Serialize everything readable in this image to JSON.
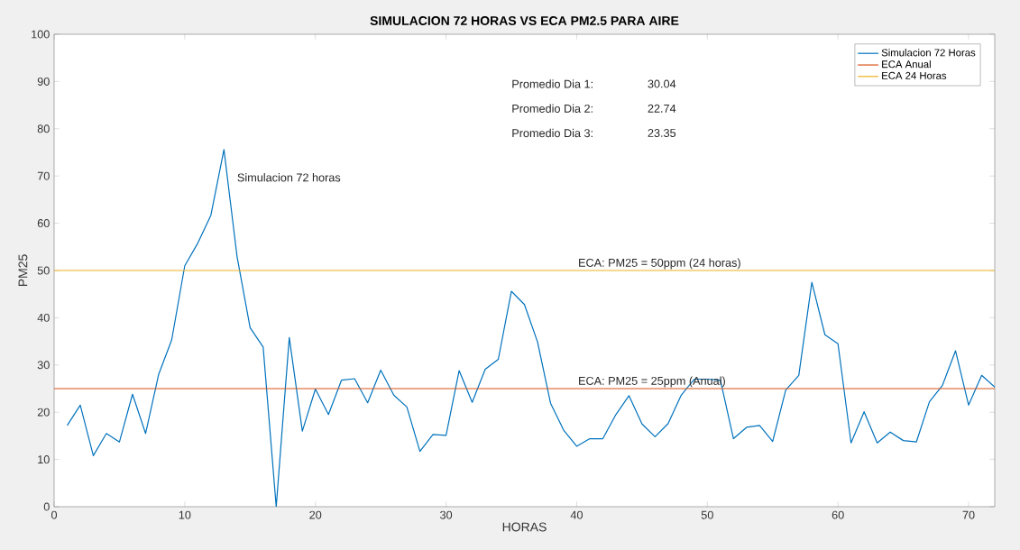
{
  "chart_data": {
    "type": "line",
    "title": "SIMULACION 72 HORAS VS ECA PM2.5 PARA AIRE",
    "xlabel": "HORAS",
    "ylabel": "PM25",
    "xlim": [
      0,
      72
    ],
    "ylim": [
      0,
      100
    ],
    "xticks": [
      0,
      10,
      20,
      30,
      40,
      50,
      60,
      70
    ],
    "yticks": [
      0,
      10,
      20,
      30,
      40,
      50,
      60,
      70,
      80,
      90,
      100
    ],
    "legend": "top right",
    "grid": false,
    "series": [
      {
        "name": "Simulacion 72 Horas",
        "color": "#0072bd",
        "x": [
          1,
          2,
          3,
          4,
          5,
          6,
          7,
          8,
          9,
          10,
          11,
          12,
          13,
          14,
          15,
          16,
          17,
          18,
          19,
          20,
          21,
          22,
          23,
          24,
          25,
          26,
          27,
          28,
          29,
          30,
          31,
          32,
          33,
          34,
          35,
          36,
          37,
          38,
          39,
          40,
          41,
          42,
          43,
          44,
          45,
          46,
          47,
          48,
          49,
          50,
          51,
          52,
          53,
          54,
          55,
          56,
          57,
          58,
          59,
          60,
          61,
          62,
          63,
          64,
          65,
          66,
          67,
          68,
          69,
          70,
          71,
          72
        ],
        "values": [
          17.2,
          21.5,
          10.8,
          15.5,
          13.7,
          23.8,
          15.5,
          28,
          35.3,
          51,
          55.8,
          61.7,
          75.6,
          53,
          37.9,
          33.8,
          0,
          35.8,
          16,
          24.9,
          19.5,
          26.8,
          27.1,
          22,
          28.9,
          23.6,
          21.1,
          11.7,
          15.3,
          15.1,
          28.8,
          22.1,
          29.1,
          31.2,
          45.6,
          42.8,
          34.9,
          21.9,
          16.2,
          12.8,
          14.4,
          14.4,
          19.5,
          23.5,
          17.5,
          14.8,
          17.6,
          23.6,
          27,
          27,
          26.8,
          14.4,
          16.8,
          17.2,
          13.8,
          24.7,
          27.8,
          47.5,
          36.4,
          34.5,
          13.5,
          20.1,
          13.5,
          15.8,
          14,
          13.7,
          22.2,
          25.7,
          33,
          21.5,
          27.8,
          25.3
        ]
      },
      {
        "name": "ECA Anual",
        "color": "#d95319",
        "x": [
          0,
          72
        ],
        "values": [
          25,
          25
        ]
      },
      {
        "name": "ECA 24 Horas",
        "color": "#edb120",
        "x": [
          0,
          72
        ],
        "values": [
          50,
          50
        ]
      }
    ],
    "annotations": [
      "Promedio Dia 1:",
      "30.04",
      "Promedio Dia 2:",
      "22.74",
      "Promedio Dia 3:",
      "23.35",
      "Simulacion 72 horas",
      {
        "text": "ECA: PM25 = 50ppm (24 horas)",
        "x": 40,
        "y": 50
      },
      {
        "text": "ECA: PM25 = 25ppm (Anual)",
        "x": 40,
        "y": 25
      }
    ]
  }
}
